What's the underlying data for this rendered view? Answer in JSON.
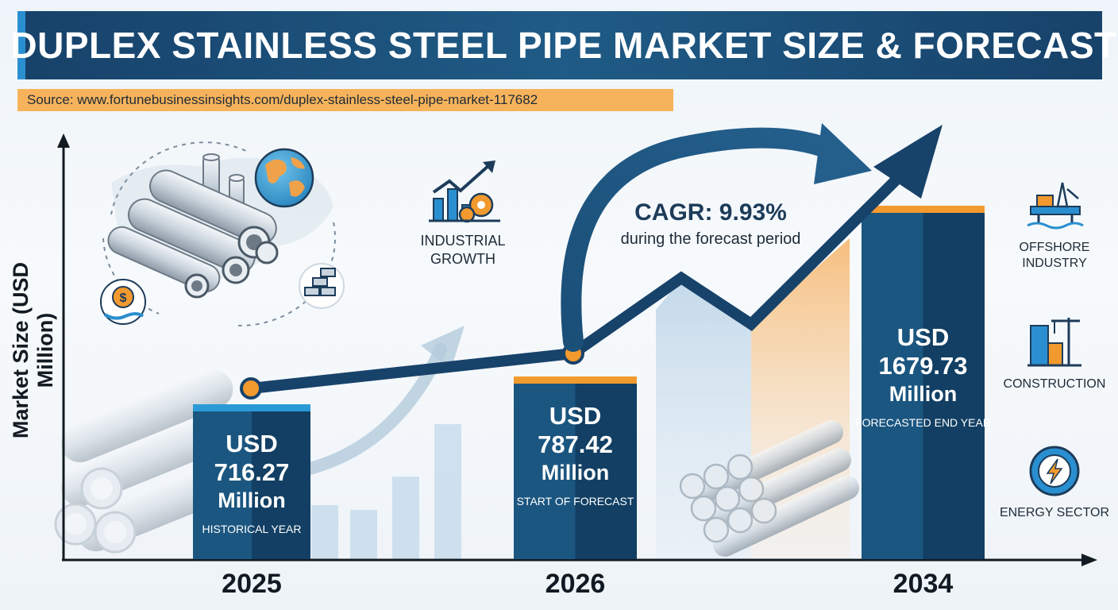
{
  "title": "DUPLEX STAINLESS STEEL PIPE MARKET SIZE & FORECAST",
  "source": "Source: www.fortunebusinessinsights.com/duplex-stainless-steel-pipe-market-117682",
  "colors": {
    "navy": "#17426a",
    "bar_dark": "#123f63",
    "bar_mid": "#1b5680",
    "accent_orange": "#f39a2e",
    "accent_blue": "#2a9ad6",
    "banner_source": "#f6b35c"
  },
  "chart_data": {
    "type": "bar",
    "title": "DUPLEX STAINLESS STEEL PIPE MARKET SIZE & FORECAST",
    "xlabel": "",
    "ylabel": "Market Size (USD Million)",
    "categories": [
      "2025",
      "2026",
      "2034"
    ],
    "values": [
      716.27,
      787.42,
      1679.73
    ],
    "grid": false,
    "bars": [
      {
        "year": "2025",
        "line1": "USD",
        "line2": "716.27",
        "line3": "Million",
        "note": "HISTORICAL YEAR"
      },
      {
        "year": "2026",
        "line1": "USD",
        "line2": "787.42",
        "line3": "Million",
        "note": "START OF FORECAST"
      },
      {
        "year": "2034",
        "line1": "USD",
        "line2": "1679.73",
        "line3": "Million",
        "note": "FORECASTED END YEAR"
      }
    ],
    "annotations": {
      "cagr": "CAGR: 9.93%",
      "cagr_sub": "during the forecast period",
      "industrial": "INDUSTRIAL\nGROWTH"
    }
  },
  "sectors": [
    {
      "label": "OFFSHORE\nINDUSTRY",
      "icon": "offshore-rig-icon"
    },
    {
      "label": "CONSTRUCTION",
      "icon": "construction-crane-icon"
    },
    {
      "label": "ENERGY SECTOR",
      "icon": "energy-gear-icon"
    }
  ]
}
